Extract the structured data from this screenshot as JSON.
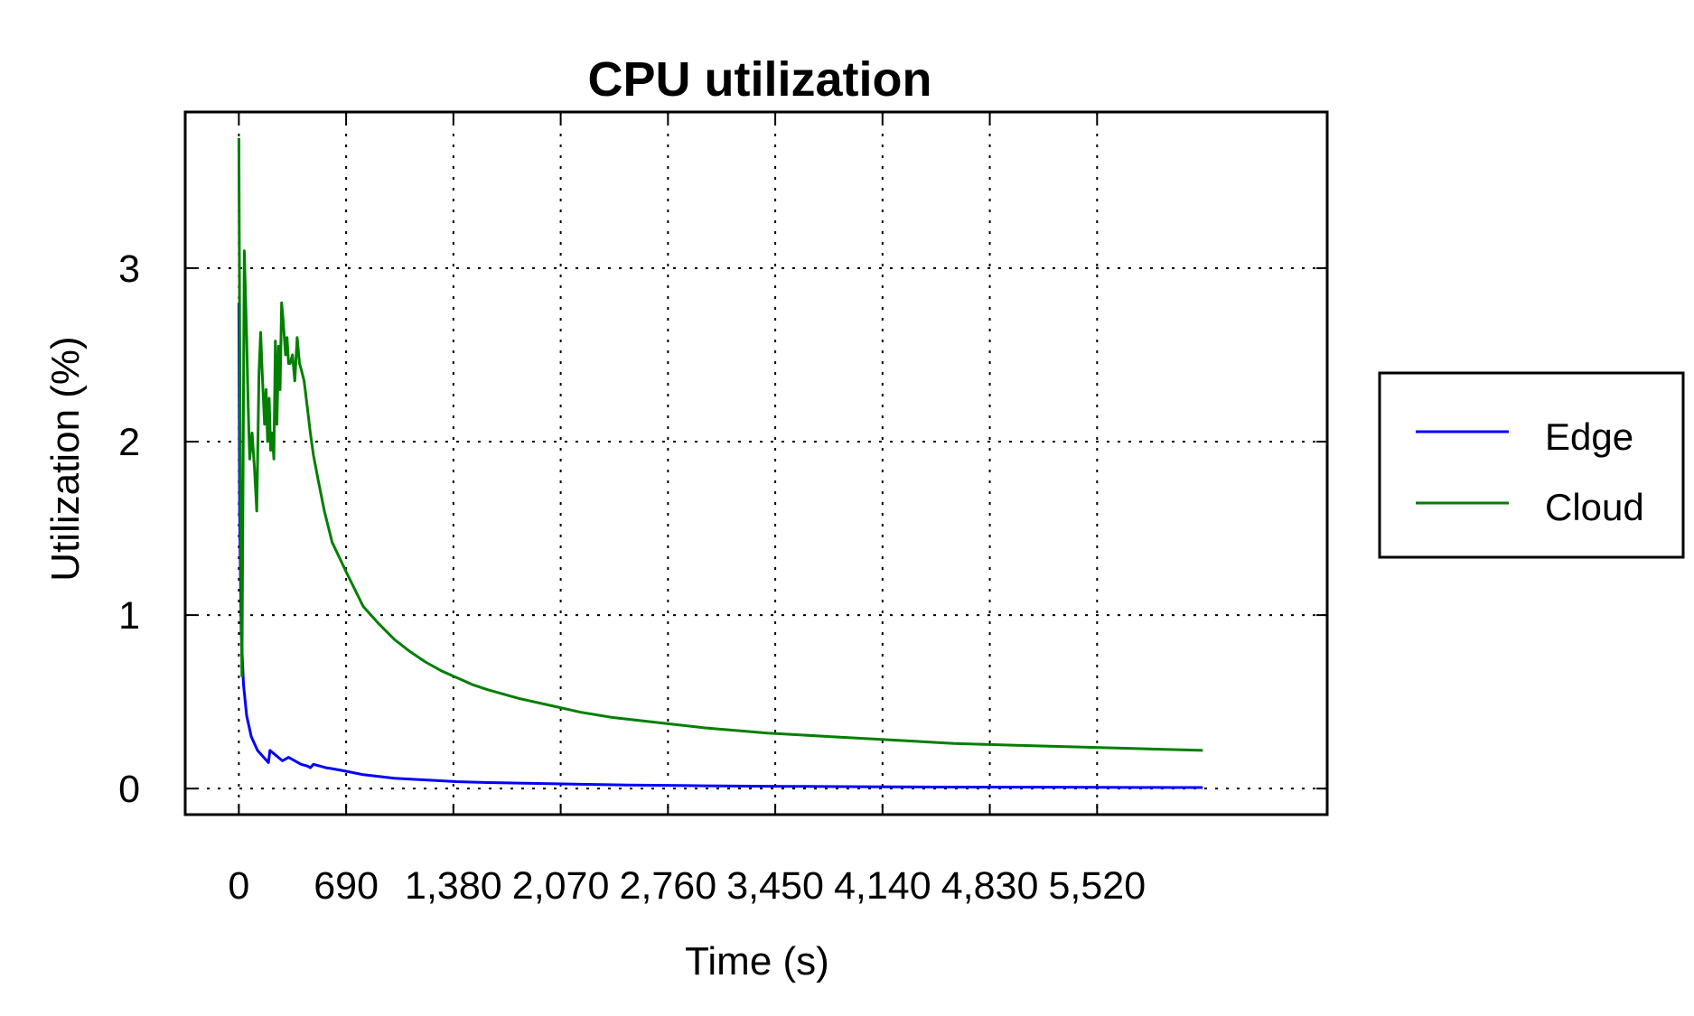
{
  "chart_data": {
    "type": "line",
    "title": "CPU utilization",
    "xlabel": "Time (s)",
    "ylabel": "Utilization (%)",
    "xlim": [
      -345,
      7000
    ],
    "ylim": [
      -0.15,
      3.9
    ],
    "x_ticks": [
      0,
      690,
      1380,
      2070,
      2760,
      3450,
      4140,
      4830,
      5520
    ],
    "x_tick_labels": [
      "0",
      "690",
      "1,380",
      "2,070",
      "2,760",
      "3,450",
      "4,140",
      "4,830",
      "5,520"
    ],
    "y_ticks": [
      0,
      1,
      2,
      3
    ],
    "y_tick_labels": [
      "0",
      "1",
      "2",
      "3"
    ],
    "grid": true,
    "legend_position": "right",
    "series": [
      {
        "name": "Edge",
        "color": "#0000ff",
        "x": [
          0,
          5,
          15,
          30,
          50,
          80,
          120,
          160,
          190,
          200,
          240,
          280,
          320,
          360,
          400,
          440,
          460,
          480,
          520,
          560,
          600,
          690,
          800,
          1000,
          1200,
          1400,
          1600,
          2000,
          2500,
          3000,
          3500,
          4000,
          4500,
          5000,
          5500,
          6000,
          6200
        ],
        "y": [
          2.8,
          1.6,
          0.9,
          0.6,
          0.42,
          0.3,
          0.22,
          0.18,
          0.15,
          0.22,
          0.19,
          0.16,
          0.18,
          0.16,
          0.14,
          0.13,
          0.12,
          0.14,
          0.13,
          0.12,
          0.115,
          0.1,
          0.08,
          0.06,
          0.05,
          0.04,
          0.035,
          0.028,
          0.02,
          0.016,
          0.013,
          0.011,
          0.009,
          0.008,
          0.007,
          0.006,
          0.006
        ]
      },
      {
        "name": "Cloud",
        "color": "#007f00",
        "x": [
          0,
          10,
          20,
          35,
          50,
          60,
          70,
          85,
          100,
          115,
          130,
          140,
          150,
          165,
          175,
          185,
          195,
          205,
          215,
          225,
          235,
          245,
          255,
          265,
          275,
          285,
          300,
          310,
          320,
          330,
          345,
          360,
          375,
          390,
          400,
          420,
          440,
          460,
          480,
          510,
          550,
          600,
          690,
          800,
          900,
          1000,
          1100,
          1200,
          1300,
          1400,
          1500,
          1600,
          1800,
          2000,
          2200,
          2400,
          2600,
          2800,
          3000,
          3400,
          3800,
          4200,
          4600,
          5000,
          5400,
          5800,
          6200
        ],
        "y": [
          3.75,
          1.6,
          0.65,
          3.1,
          2.6,
          2.2,
          1.9,
          2.05,
          1.85,
          1.6,
          2.4,
          2.63,
          2.4,
          2.1,
          2.3,
          2.0,
          2.25,
          1.95,
          2.05,
          1.9,
          2.58,
          2.1,
          2.55,
          2.3,
          2.8,
          2.7,
          2.5,
          2.6,
          2.45,
          2.45,
          2.5,
          2.35,
          2.6,
          2.45,
          2.42,
          2.35,
          2.2,
          2.05,
          1.92,
          1.78,
          1.6,
          1.42,
          1.25,
          1.05,
          0.95,
          0.86,
          0.79,
          0.73,
          0.68,
          0.64,
          0.6,
          0.57,
          0.52,
          0.48,
          0.44,
          0.41,
          0.39,
          0.37,
          0.35,
          0.32,
          0.3,
          0.28,
          0.26,
          0.25,
          0.24,
          0.23,
          0.22
        ]
      }
    ]
  }
}
